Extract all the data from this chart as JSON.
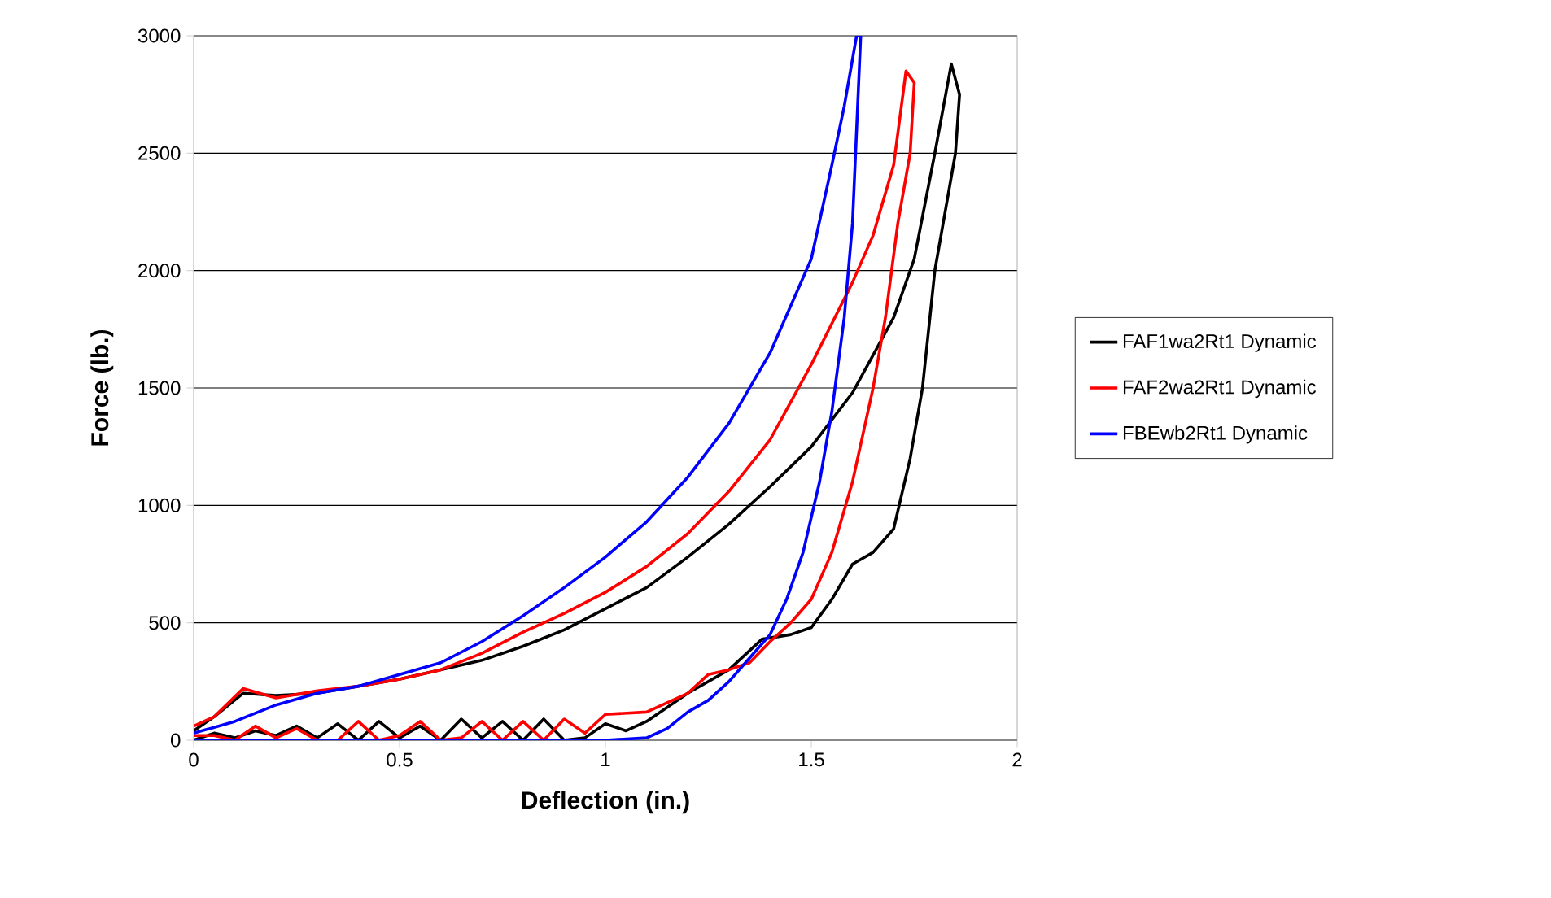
{
  "chart_data": {
    "type": "line",
    "xlabel": "Deflection (in.)",
    "ylabel": "Force (lb.)",
    "xlim": [
      0,
      2
    ],
    "ylim": [
      0,
      3000
    ],
    "xticks": [
      0,
      0.5,
      1,
      1.5,
      2
    ],
    "yticks": [
      0,
      500,
      1000,
      1500,
      2000,
      2500,
      3000
    ],
    "grid": "y",
    "legend": "right",
    "marker": "none",
    "line_style": "solid",
    "series": [
      {
        "name": "FAF1wa2Rt1 Dynamic",
        "color": "#000000",
        "x": [
          0,
          0.05,
          0.12,
          0.2,
          0.3,
          0.4,
          0.5,
          0.6,
          0.7,
          0.8,
          0.9,
          1.0,
          1.1,
          1.2,
          1.3,
          1.4,
          1.5,
          1.6,
          1.7,
          1.75,
          1.8,
          1.84,
          1.86,
          1.85,
          1.83,
          1.8,
          1.77,
          1.74,
          1.7,
          1.65,
          1.6,
          1.55,
          1.5,
          1.45,
          1.38,
          1.3,
          1.2,
          1.1,
          1.05,
          1.0,
          0.95,
          0.9,
          0.85,
          0.8,
          0.75,
          0.7,
          0.65,
          0.6,
          0.55,
          0.5,
          0.45,
          0.4,
          0.35,
          0.3,
          0.25,
          0.2,
          0.15,
          0.1,
          0.05,
          0
        ],
        "values": [
          40,
          100,
          200,
          190,
          200,
          230,
          260,
          300,
          340,
          400,
          470,
          560,
          650,
          780,
          920,
          1080,
          1250,
          1480,
          1800,
          2050,
          2500,
          2880,
          2750,
          2500,
          2300,
          2000,
          1500,
          1200,
          900,
          800,
          750,
          600,
          480,
          450,
          430,
          300,
          200,
          80,
          40,
          70,
          10,
          0,
          90,
          0,
          80,
          10,
          90,
          0,
          60,
          10,
          80,
          0,
          70,
          10,
          60,
          20,
          40,
          10,
          30,
          0
        ]
      },
      {
        "name": "FAF2wa2Rt1 Dynamic",
        "color": "#ff0000",
        "x": [
          0,
          0.05,
          0.12,
          0.2,
          0.3,
          0.4,
          0.5,
          0.6,
          0.7,
          0.8,
          0.9,
          1.0,
          1.1,
          1.2,
          1.3,
          1.4,
          1.5,
          1.6,
          1.65,
          1.7,
          1.73,
          1.75,
          1.74,
          1.71,
          1.68,
          1.65,
          1.6,
          1.55,
          1.5,
          1.45,
          1.4,
          1.35,
          1.3,
          1.25,
          1.2,
          1.1,
          1.0,
          0.95,
          0.9,
          0.85,
          0.8,
          0.75,
          0.7,
          0.65,
          0.6,
          0.55,
          0.5,
          0.45,
          0.4,
          0.35,
          0.3,
          0.25,
          0.2,
          0.15,
          0.1,
          0.05,
          0
        ],
        "values": [
          60,
          100,
          220,
          180,
          210,
          230,
          260,
          300,
          370,
          460,
          540,
          630,
          740,
          880,
          1060,
          1280,
          1600,
          1950,
          2150,
          2450,
          2850,
          2800,
          2500,
          2200,
          1800,
          1500,
          1100,
          800,
          600,
          500,
          420,
          330,
          300,
          280,
          200,
          120,
          110,
          30,
          90,
          0,
          80,
          0,
          80,
          10,
          0,
          80,
          20,
          0,
          80,
          0,
          0,
          50,
          10,
          60,
          0,
          20,
          20
        ]
      },
      {
        "name": "FBEwb2Rt1 Dynamic",
        "color": "#0000ff",
        "x": [
          0,
          0.1,
          0.2,
          0.3,
          0.4,
          0.5,
          0.6,
          0.7,
          0.8,
          0.9,
          1.0,
          1.1,
          1.2,
          1.3,
          1.4,
          1.5,
          1.55,
          1.58,
          1.61,
          1.62,
          1.61,
          1.6,
          1.58,
          1.55,
          1.52,
          1.48,
          1.44,
          1.4,
          1.35,
          1.3,
          1.25,
          1.2,
          1.15,
          1.1,
          1.0,
          0
        ],
        "values": [
          30,
          80,
          150,
          200,
          230,
          280,
          330,
          420,
          530,
          650,
          780,
          930,
          1120,
          1350,
          1650,
          2050,
          2450,
          2700,
          3000,
          3000,
          2600,
          2200,
          1800,
          1400,
          1100,
          800,
          600,
          450,
          350,
          250,
          170,
          120,
          50,
          10,
          0,
          0
        ]
      }
    ]
  }
}
